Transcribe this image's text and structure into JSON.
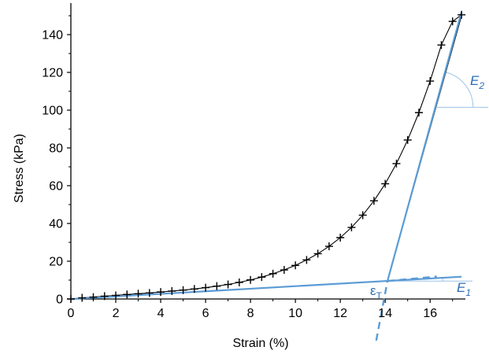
{
  "chart_data": {
    "type": "line",
    "xlabel": "Strain (%)",
    "ylabel": "Stress (kPa)",
    "xlim": [
      0,
      17.5
    ],
    "ylim": [
      0,
      155
    ],
    "xticks": [
      0,
      2,
      4,
      6,
      8,
      10,
      12,
      14,
      16
    ],
    "yticks": [
      0,
      20,
      40,
      60,
      80,
      100,
      120,
      140
    ],
    "series": [
      {
        "marker": "plus",
        "style": "markers",
        "color": "#000000",
        "x": [
          0.0,
          0.5,
          1.0,
          1.5,
          2.0,
          2.5,
          3.0,
          3.5,
          4.0,
          4.5,
          5.0,
          5.5,
          6.0,
          6.5,
          7.0,
          7.5,
          8.0,
          8.5,
          9.0,
          9.5,
          10.0,
          10.5,
          11.0,
          11.5,
          12.0,
          12.5,
          13.0,
          13.5,
          14.0,
          14.5,
          15.0,
          15.5,
          16.0,
          16.5,
          17.0,
          17.4
        ],
        "y": [
          0.0,
          0.6,
          1.0,
          1.5,
          1.9,
          2.4,
          2.8,
          3.2,
          3.7,
          4.2,
          4.7,
          5.3,
          6.0,
          6.8,
          7.7,
          8.8,
          10.1,
          11.6,
          13.4,
          15.4,
          17.8,
          20.7,
          24.0,
          27.9,
          32.5,
          37.9,
          44.4,
          52.0,
          61.0,
          71.7,
          84.2,
          98.7,
          115.4,
          134.5,
          147.0,
          150.5
        ]
      },
      {
        "style": "line",
        "color": "#000000",
        "x": [
          0.0,
          0.5,
          1.0,
          1.5,
          2.0,
          2.5,
          3.0,
          3.5,
          4.0,
          4.5,
          5.0,
          5.5,
          6.0,
          6.5,
          7.0,
          7.5,
          8.0,
          8.5,
          9.0,
          9.5,
          10.0,
          10.5,
          11.0,
          11.5,
          12.0,
          12.5,
          13.0,
          13.5,
          14.0,
          14.5,
          15.0,
          15.5,
          16.0,
          16.5,
          17.0,
          17.4
        ],
        "y": [
          0.0,
          0.6,
          1.0,
          1.5,
          1.9,
          2.4,
          2.8,
          3.2,
          3.7,
          4.2,
          4.7,
          5.3,
          6.0,
          6.8,
          7.7,
          8.8,
          10.1,
          11.6,
          13.4,
          15.4,
          17.8,
          20.7,
          24.0,
          27.9,
          32.5,
          37.9,
          44.4,
          52.0,
          61.0,
          71.7,
          84.2,
          98.7,
          115.4,
          134.5,
          147.0,
          150.5
        ]
      },
      {
        "style": "line",
        "color": "#000000",
        "x": [
          0,
          14.1,
          17.4
        ],
        "y": [
          0,
          9.5,
          150
        ]
      },
      {
        "style": "line",
        "color": "#5b9bd5",
        "x": [
          0,
          17.4
        ],
        "y": [
          0,
          11.8
        ]
      },
      {
        "style": "line",
        "color": "#5b9bd5",
        "x": [
          14.1,
          17.4
        ],
        "y": [
          9.5,
          152
        ]
      },
      {
        "style": "dashed",
        "color": "#5b9bd5",
        "x": [
          14.1,
          16.3
        ],
        "y": [
          9.5,
          11.9
        ]
      },
      {
        "style": "dashed",
        "color": "#5b9bd5",
        "x": [
          13.6,
          14.1
        ],
        "y": [
          -22,
          9.5
        ]
      }
    ],
    "annotations": {
      "e2_main": "E",
      "e2_sub": "2",
      "e1_main": "E",
      "e1_sub": "1",
      "et_main": "ε",
      "et_sub": "T"
    }
  }
}
